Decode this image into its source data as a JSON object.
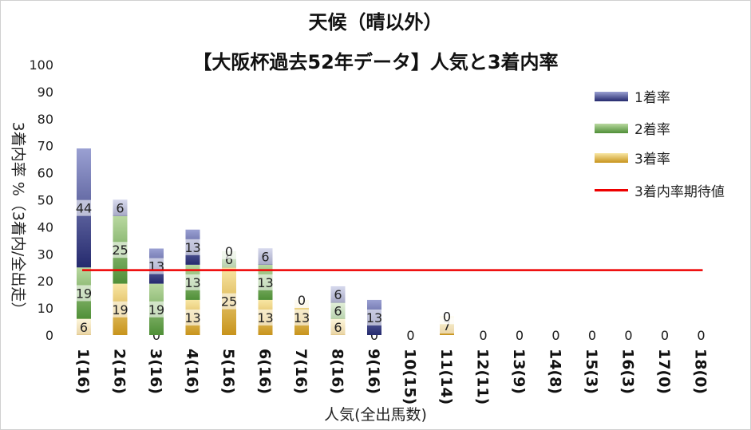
{
  "chart_data": {
    "type": "bar",
    "stacked": true,
    "title": "天候（晴以外）",
    "subtitle": "【大阪杯過去52年データ】人気と3着内率",
    "xlabel": "人気(全出馬数)",
    "ylabel": "3着内率 %（3着内/全出走）",
    "ylim": [
      0,
      100
    ],
    "yticks": [
      "0",
      "10",
      "20",
      "30",
      "40",
      "50",
      "60",
      "70",
      "80",
      "90",
      "100"
    ],
    "categories": [
      "1(16)",
      "2(16)",
      "3(16)",
      "4(16)",
      "5(16)",
      "6(16)",
      "7(16)",
      "8(16)",
      "9(16)",
      "10(15)",
      "11(14)",
      "12(11)",
      "13(9)",
      "14(8)",
      "15(3)",
      "16(3)",
      "17(0)",
      "18(0)"
    ],
    "series": [
      {
        "name": "3着率",
        "values": [
          6,
          19,
          0,
          13,
          25,
          13,
          13,
          6,
          0,
          0,
          7,
          0,
          0,
          0,
          0,
          0,
          0,
          0
        ]
      },
      {
        "name": "2着率",
        "values": [
          19,
          25,
          19,
          13,
          6,
          13,
          0,
          6,
          0,
          0,
          0,
          0,
          0,
          0,
          0,
          0,
          0,
          0
        ]
      },
      {
        "name": "1着率",
        "values": [
          44,
          6,
          13,
          13,
          0,
          6,
          0,
          6,
          13,
          0,
          0,
          0,
          0,
          0,
          0,
          0,
          0,
          0
        ]
      }
    ],
    "reference_line": {
      "name": "3着内率期待値",
      "value": 24,
      "color": "#ee0000"
    },
    "legend_position": "right",
    "grid": false
  },
  "colors": {
    "win": [
      "#9aa0d2",
      "#252a6e"
    ],
    "second": [
      "#b9d8a0",
      "#4f8f37"
    ],
    "third": [
      "#f8e6a4",
      "#c8941c"
    ]
  }
}
